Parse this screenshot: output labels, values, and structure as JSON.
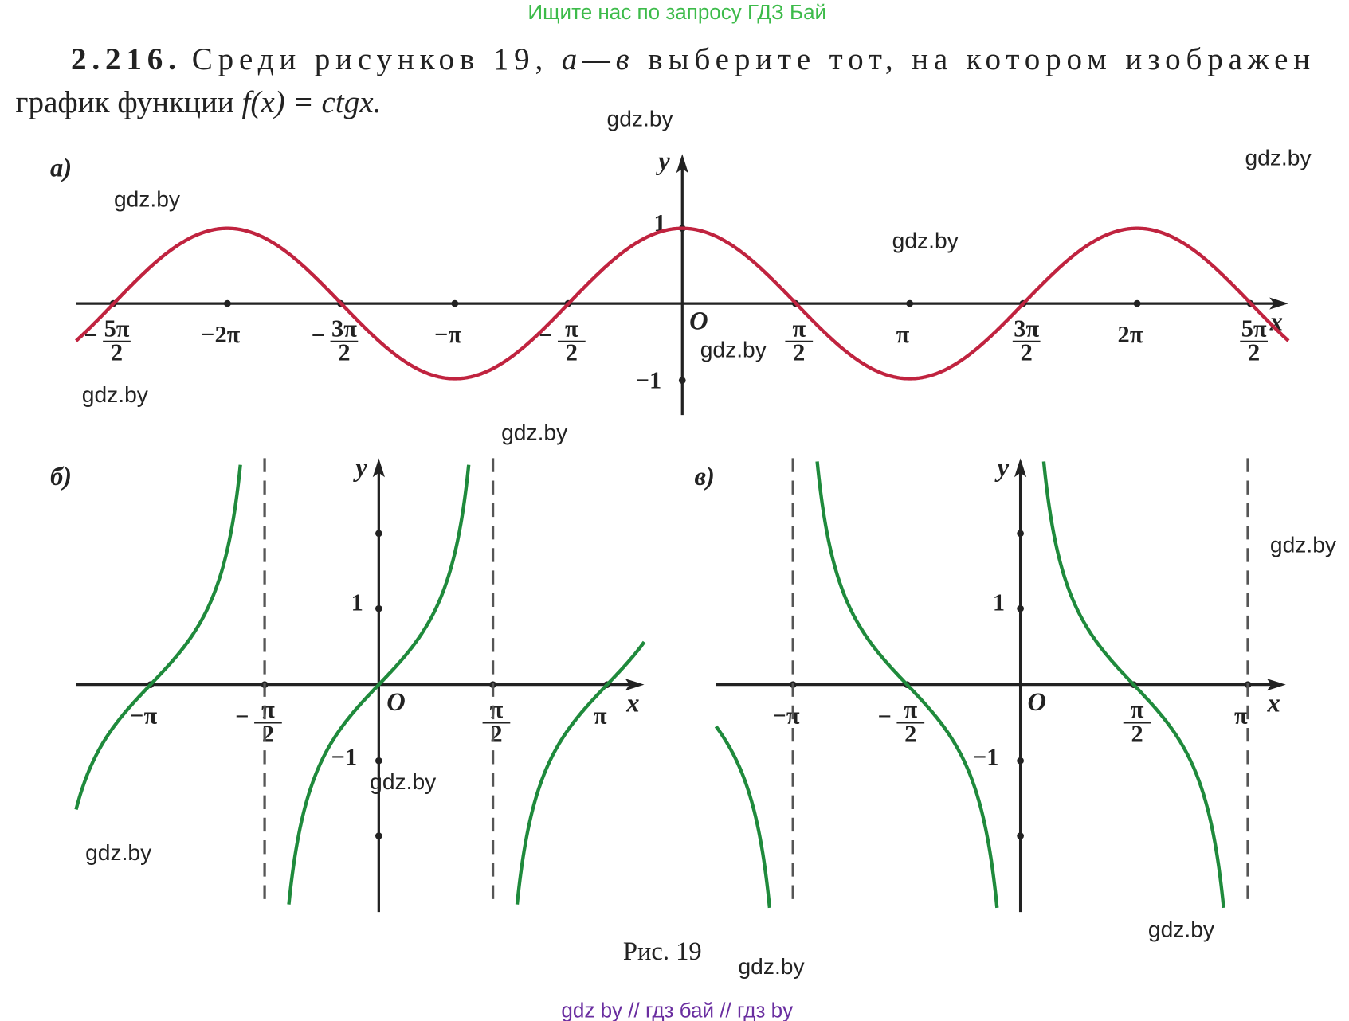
{
  "banner": "Ищите нас по запросу ГДЗ Бай",
  "problem": {
    "number": "2.216.",
    "line1": "Среди рисунков 19, ",
    "range": "а—в",
    "line1_end": " выберите тот, на котором изображен",
    "line2": "график функции ",
    "func": "f(x) = ctgx."
  },
  "figures": [
    {
      "label": "а)",
      "y_name": "y",
      "x_name": "x",
      "origin": "O",
      "yticks": [
        "1",
        "−1"
      ],
      "xticks": [
        {
          "sign": "−",
          "num": "5π",
          "den": "2"
        },
        {
          "text": "−2π"
        },
        {
          "sign": "−",
          "num": "3π",
          "den": "2"
        },
        {
          "text": "−π"
        },
        {
          "sign": "−",
          "num": "π",
          "den": "2"
        },
        {
          "num": "π",
          "den": "2"
        },
        {
          "text": "π"
        },
        {
          "num": "3π",
          "den": "2"
        },
        {
          "text": "2π"
        },
        {
          "num": "5π",
          "den": "2"
        }
      ]
    },
    {
      "label": "б)",
      "y_name": "y",
      "x_name": "x",
      "origin": "O",
      "yticks": [
        "1",
        "−1"
      ],
      "xticks": [
        {
          "text": "−π"
        },
        {
          "sign": "−",
          "num": "π",
          "den": "2"
        },
        {
          "num": "π",
          "den": "2"
        },
        {
          "text": "π"
        }
      ]
    },
    {
      "label": "в)",
      "y_name": "y",
      "x_name": "x",
      "origin": "O",
      "yticks": [
        "1",
        "−1"
      ],
      "xticks": [
        {
          "text": "−π"
        },
        {
          "sign": "−",
          "num": "π",
          "den": "2"
        },
        {
          "num": "π",
          "den": "2"
        },
        {
          "text": "π"
        }
      ]
    }
  ],
  "caption": "Рис. 19",
  "watermarks": [
    "gdz.by",
    "gdz.by",
    "gdz.by",
    "gdz.by",
    "gdz.by",
    "gdz.by",
    "gdz.by",
    "gdz.by",
    "gdz.by",
    "gdz.by",
    "gdz.by",
    "gdz.by"
  ],
  "footer": "gdz by  //  гдз бай  //  гдз by"
}
